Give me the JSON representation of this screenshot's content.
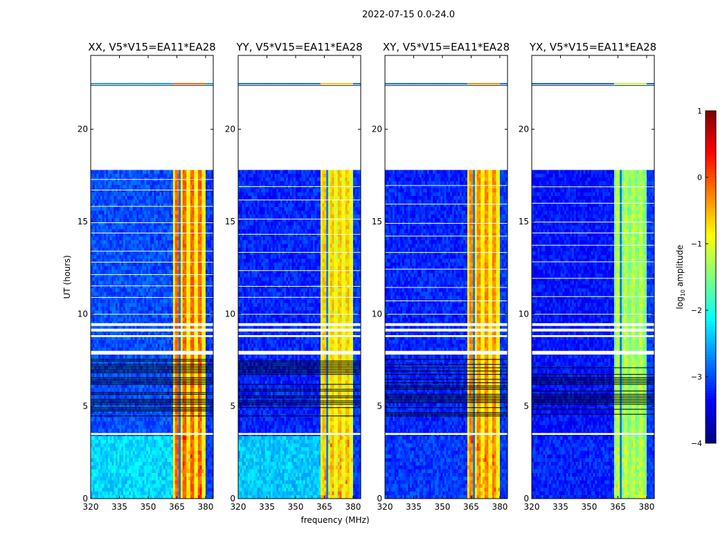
{
  "suptitle": "2022-07-15 0.0-24.0",
  "chart_data": {
    "type": "heatmap",
    "xlabel": "frequency (MHz)",
    "ylabel": "UT (hours)",
    "xlim": [
      320,
      384
    ],
    "ylim": [
      0,
      24
    ],
    "xticks": [
      320,
      335,
      350,
      365,
      380
    ],
    "yticks": [
      0,
      5,
      10,
      15,
      20
    ],
    "colorbar": {
      "label": "log10 amplitude",
      "label_main": "log",
      "label_sub": "10",
      "label_rest": " amplitude",
      "range": [
        -4,
        1
      ],
      "ticks": [
        1,
        0,
        -1,
        -2,
        -3,
        -4
      ],
      "colormap": "jet"
    },
    "no_data_intervals_hours": [
      [
        17.8,
        22.35
      ],
      [
        22.5,
        24
      ],
      [
        9.35,
        9.5
      ],
      [
        9.05,
        9.2
      ],
      [
        8.75,
        8.85
      ],
      [
        7.8,
        8.0
      ],
      [
        3.45,
        3.55
      ]
    ],
    "flagged_interval_hours": [
      4.5,
      7.6
    ],
    "band_mhz": [
      363,
      380
    ],
    "band_gaps_mhz": [
      366.5,
      371,
      375,
      378
    ],
    "panels": [
      {
        "title": "XX, V5*V15=EA11*EA28",
        "bg_low_time": -2.3,
        "bg_high_time": -3.0,
        "band_level": -0.1,
        "band_stripe_level": -0.9
      },
      {
        "title": "YY, V5*V15=EA11*EA28",
        "bg_low_time": -2.4,
        "bg_high_time": -3.2,
        "band_level": -0.6,
        "band_stripe_level": -1.0
      },
      {
        "title": "XY, V5*V15=EA11*EA28",
        "bg_low_time": -3.1,
        "bg_high_time": -3.2,
        "band_level": -0.3,
        "band_stripe_level": -0.9
      },
      {
        "title": "YX, V5*V15=EA11*EA28",
        "bg_low_time": -3.2,
        "bg_high_time": -3.3,
        "band_level": -1.2,
        "band_stripe_level": -1.5
      }
    ]
  }
}
